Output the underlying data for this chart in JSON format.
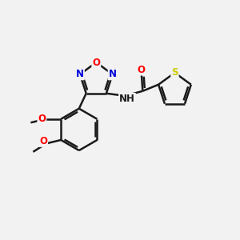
{
  "bg_color": "#f2f2f2",
  "bond_color": "#1a1a1a",
  "atom_colors": {
    "O": "#ff0000",
    "N": "#0000dd",
    "S": "#cccc00",
    "C": "#1a1a1a"
  },
  "lw": 1.8,
  "fs": 8.5,
  "xlim": [
    0,
    10
  ],
  "ylim": [
    0,
    10
  ]
}
